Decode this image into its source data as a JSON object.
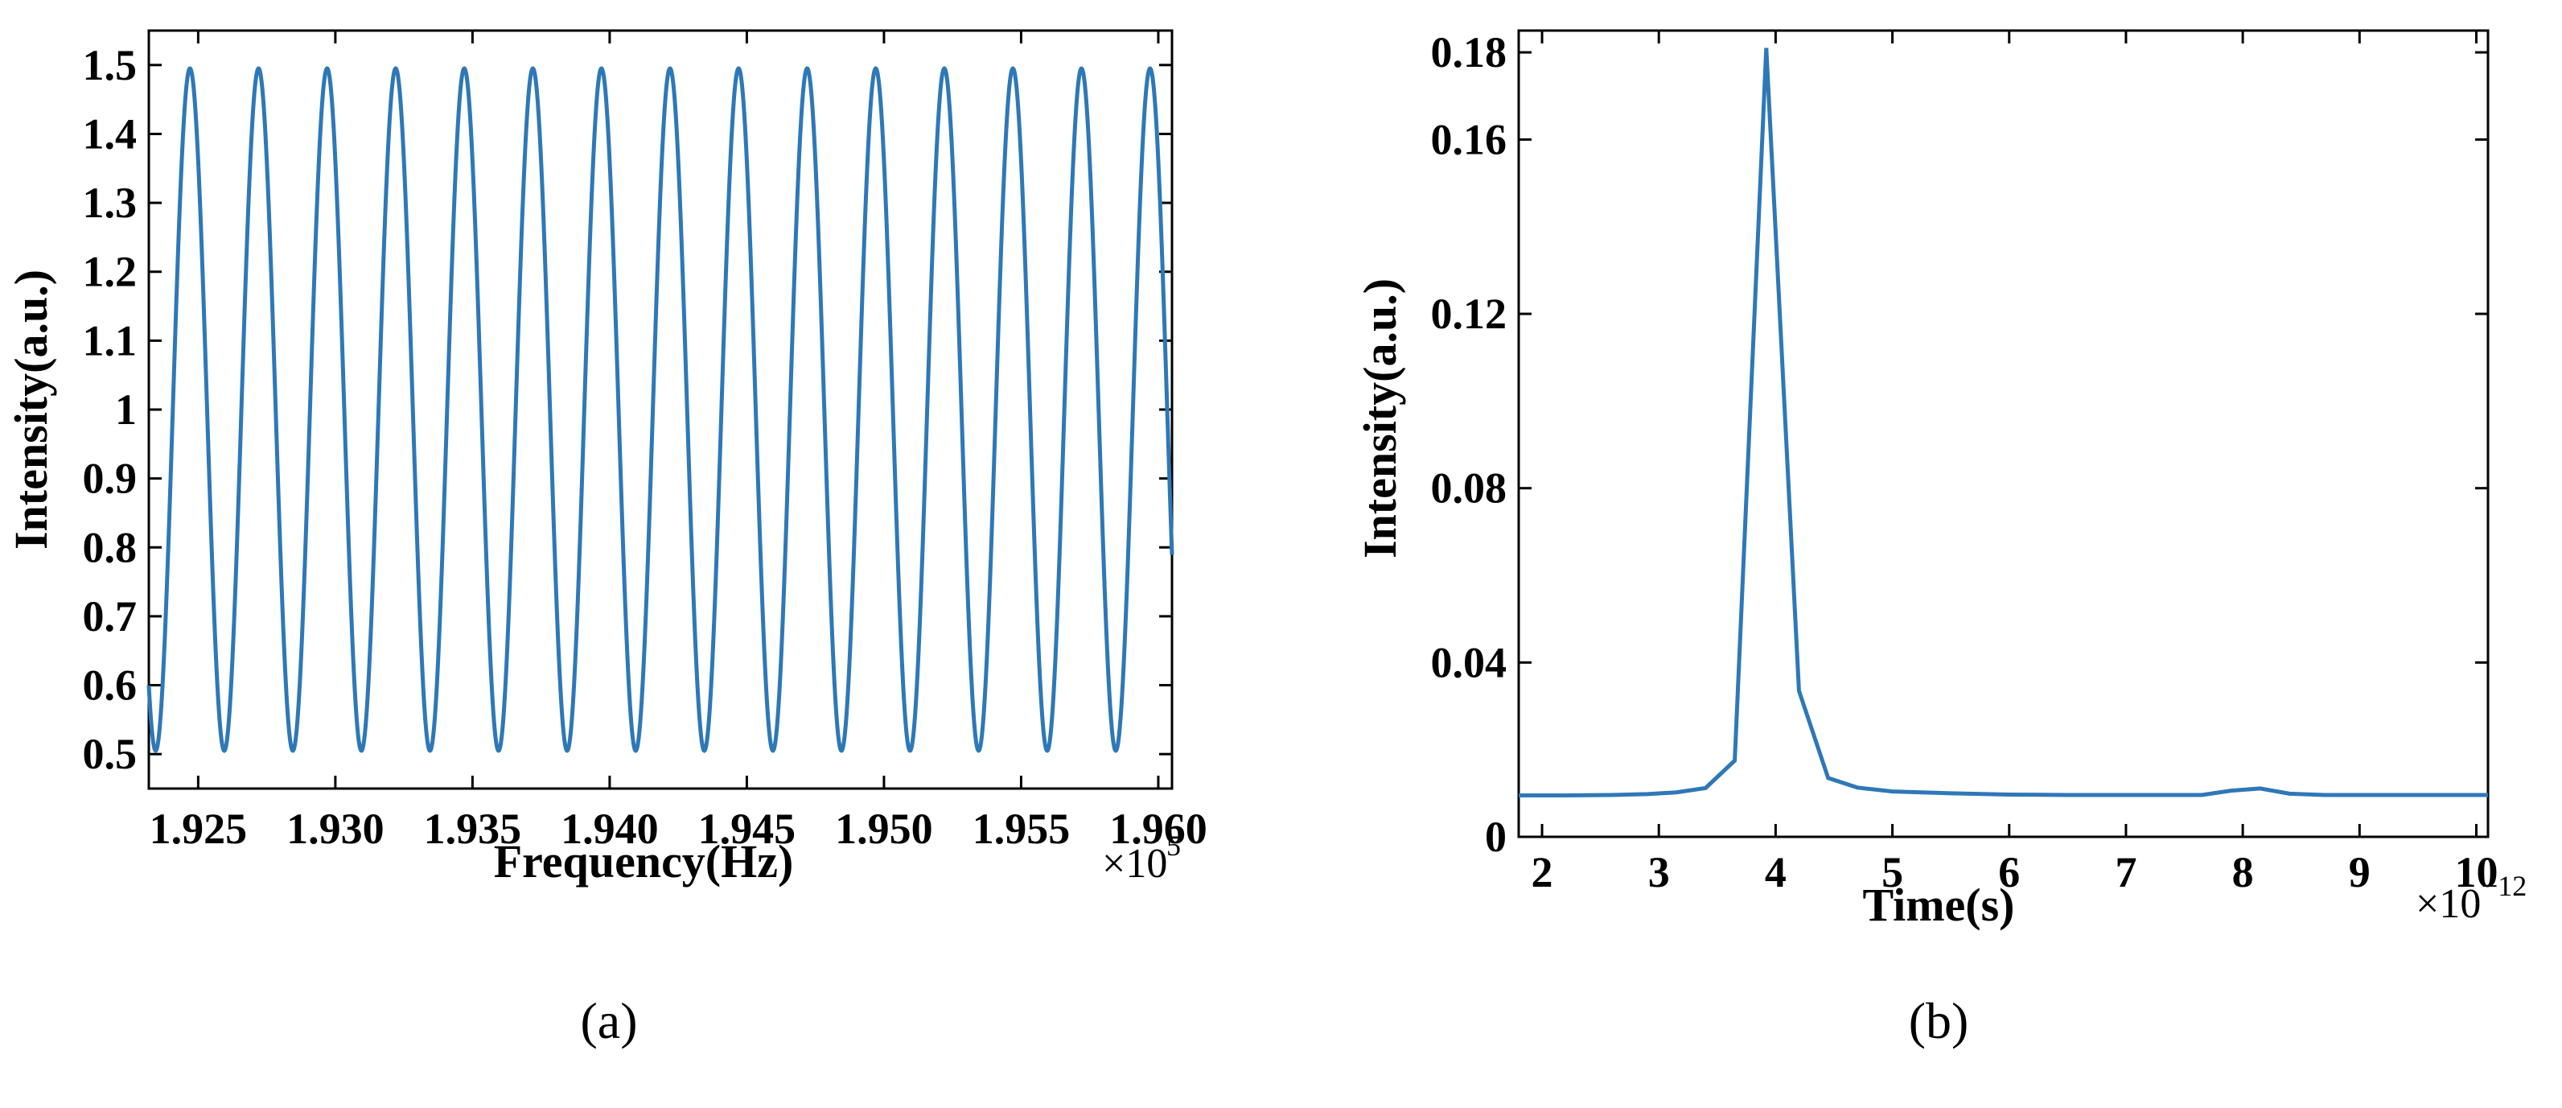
{
  "chart_data": [
    {
      "type": "line",
      "caption": "(a)",
      "xlabel": "Frequency(Hz)",
      "ylabel": "Intensity(a.u.)",
      "x_multiplier": "×10",
      "x_multiplier_exponent": "5",
      "xlim": [
        1.9232,
        1.9605
      ],
      "ylim": [
        0.45,
        1.55
      ],
      "xticks": [
        1.925,
        1.93,
        1.935,
        1.94,
        1.945,
        1.95,
        1.955,
        1.96
      ],
      "xtick_labels": [
        "1.925",
        "1.930",
        "1.935",
        "1.940",
        "1.945",
        "1.950",
        "1.955",
        "1.960"
      ],
      "yticks": [
        0.5,
        0.6,
        0.7,
        0.8,
        0.9,
        1.0,
        1.1,
        1.2,
        1.3,
        1.4,
        1.5
      ],
      "ytick_labels": [
        "0.5",
        "0.6",
        "0.7",
        "0.8",
        "0.9",
        "1",
        "1.1",
        "1.2",
        "1.3",
        "1.4",
        "1.5"
      ],
      "grid": false,
      "color": "#2e78b7",
      "series": [
        {
          "function": "cosine",
          "mean": 1.0,
          "amplitude": 0.495,
          "period": 0.0025,
          "peak_at": 1.9247,
          "x_range": [
            1.9232,
            1.9605
          ]
        }
      ]
    },
    {
      "type": "line",
      "caption": "(b)",
      "xlabel": "Time(s)",
      "ylabel": "Intensity(a.u.)",
      "x_multiplier": "×10",
      "x_multiplier_exponent": "−12",
      "xlim": [
        1.8,
        10.1
      ],
      "ylim": [
        0,
        0.185
      ],
      "xticks": [
        2,
        3,
        4,
        5,
        6,
        7,
        8,
        9,
        10
      ],
      "xtick_labels": [
        "2",
        "3",
        "4",
        "5",
        "6",
        "7",
        "8",
        "9",
        "10"
      ],
      "yticks": [
        0,
        0.04,
        0.08,
        0.12,
        0.16,
        0.18
      ],
      "ytick_labels": [
        "0",
        "0.04",
        "0.08",
        "0.12",
        "0.16",
        "0.18"
      ],
      "grid": false,
      "color": "#2e78b7",
      "series": [
        {
          "x": [
            1.8,
            2.2,
            2.6,
            2.9,
            3.15,
            3.4,
            3.65,
            3.92,
            4.2,
            4.45,
            4.7,
            5.0,
            5.5,
            6.0,
            6.5,
            7.0,
            7.65,
            7.9,
            8.15,
            8.4,
            8.7,
            9.0,
            9.5,
            10.0,
            10.1
          ],
          "y": [
            0.0095,
            0.0095,
            0.0096,
            0.0098,
            0.0102,
            0.0112,
            0.0175,
            0.181,
            0.0335,
            0.0135,
            0.0113,
            0.0104,
            0.01,
            0.0097,
            0.0096,
            0.0096,
            0.0096,
            0.0106,
            0.0111,
            0.0099,
            0.0096,
            0.0096,
            0.0096,
            0.0096,
            0.0096
          ]
        }
      ]
    }
  ]
}
